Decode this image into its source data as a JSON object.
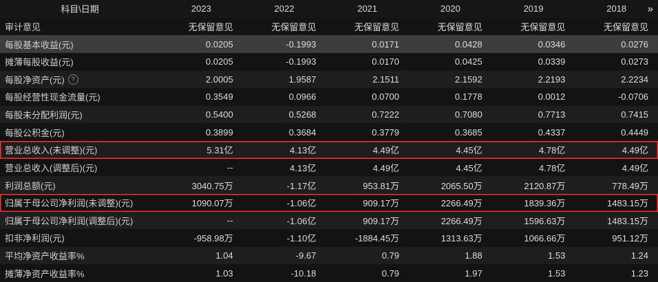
{
  "colors": {
    "background": "#131313",
    "row_alt": "#1e1e1e",
    "row_selected": "#3d3d3d",
    "marked_border_red": "#ff2d2d",
    "text": "#d6d6d6"
  },
  "table": {
    "help_icon": "?",
    "header": {
      "label": "科目\\日期",
      "years": [
        "2023",
        "2022",
        "2021",
        "2020",
        "2019",
        "2018"
      ],
      "next_icon": "»"
    },
    "rows": [
      {
        "label": "审计意见",
        "values": [
          "无保留意见",
          "无保留意见",
          "无保留意见",
          "无保留意见",
          "无保留意见",
          "无保留意见"
        ]
      },
      {
        "label": "每股基本收益(元)",
        "values": [
          "0.0205",
          "-0.1993",
          "0.0171",
          "0.0428",
          "0.0346",
          "0.0276"
        ],
        "selected": true
      },
      {
        "label": "摊薄每股收益(元)",
        "values": [
          "0.0205",
          "-0.1993",
          "0.0170",
          "0.0425",
          "0.0339",
          "0.0273"
        ]
      },
      {
        "label": "每股净资产(元)",
        "values": [
          "2.0005",
          "1.9587",
          "2.1511",
          "2.1592",
          "2.2193",
          "2.2234"
        ],
        "has_help": true
      },
      {
        "label": "每股经营性现金流量(元)",
        "values": [
          "0.3549",
          "0.0966",
          "0.0700",
          "0.1778",
          "0.0012",
          "-0.0706"
        ]
      },
      {
        "label": "每股未分配利润(元)",
        "values": [
          "0.5400",
          "0.5268",
          "0.7222",
          "0.7080",
          "0.7713",
          "0.7415"
        ]
      },
      {
        "label": "每股公积金(元)",
        "values": [
          "0.3899",
          "0.3684",
          "0.3779",
          "0.3685",
          "0.4337",
          "0.4449"
        ]
      },
      {
        "label": "营业总收入(未调整)(元)",
        "values": [
          "5.31亿",
          "4.13亿",
          "4.49亿",
          "4.45亿",
          "4.78亿",
          "4.49亿"
        ],
        "marked": true
      },
      {
        "label": "营业总收入(调整后)(元)",
        "values": [
          "--",
          "4.13亿",
          "4.49亿",
          "4.45亿",
          "4.78亿",
          "4.49亿"
        ]
      },
      {
        "label": "利润总额(元)",
        "values": [
          "3040.75万",
          "-1.17亿",
          "953.81万",
          "2065.50万",
          "2120.87万",
          "778.49万"
        ]
      },
      {
        "label": "归属于母公司净利润(未调整)(元)",
        "values": [
          "1090.07万",
          "-1.06亿",
          "909.17万",
          "2266.49万",
          "1839.36万",
          "1483.15万"
        ],
        "marked": true
      },
      {
        "label": "归属于母公司净利润(调整后)(元)",
        "values": [
          "--",
          "-1.06亿",
          "909.17万",
          "2266.49万",
          "1596.63万",
          "1483.15万"
        ]
      },
      {
        "label": "扣非净利润(元)",
        "values": [
          "-958.98万",
          "-1.10亿",
          "-1884.45万",
          "1313.63万",
          "1066.66万",
          "951.12万"
        ]
      },
      {
        "label": "平均净资产收益率%",
        "values": [
          "1.04",
          "-9.67",
          "0.79",
          "1.88",
          "1.53",
          "1.24"
        ]
      },
      {
        "label": "摊薄净资产收益率%",
        "values": [
          "1.03",
          "-10.18",
          "0.79",
          "1.97",
          "1.53",
          "1.23"
        ]
      }
    ]
  }
}
